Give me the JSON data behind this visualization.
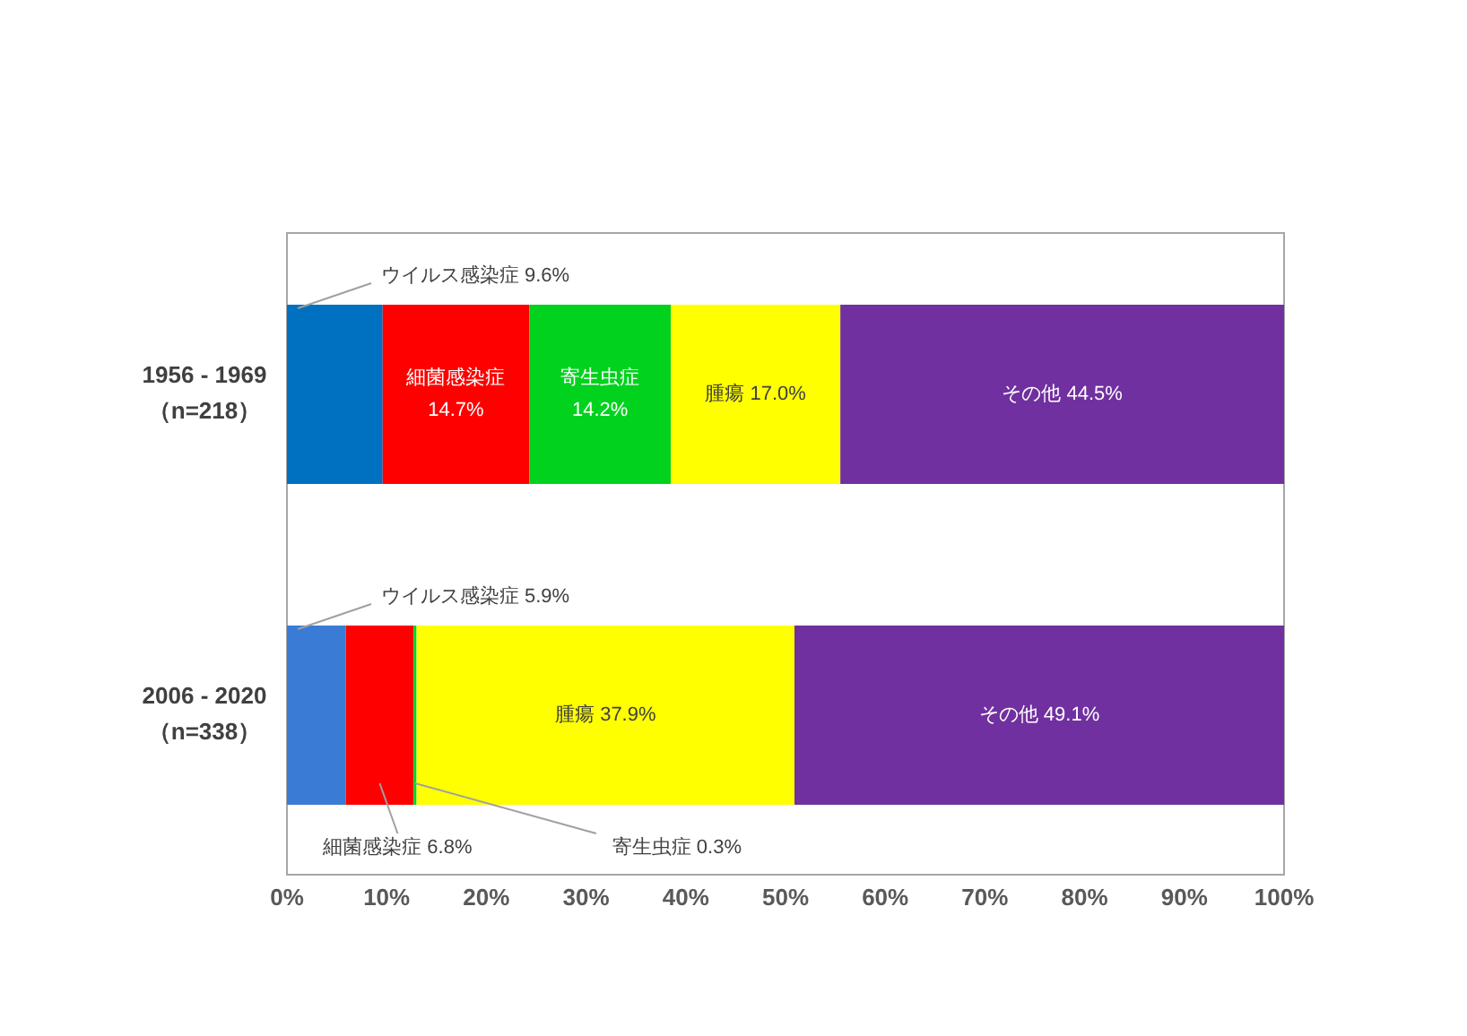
{
  "chart_data": {
    "type": "bar",
    "orientation": "horizontal",
    "stacked": true,
    "categories": [
      "1956 - 1969\n（n=218）",
      "2006 - 2020\n（n=338）"
    ],
    "series": [
      {
        "colors": [
          "#0070c0",
          "#3a7bd5"
        ],
        "values": [
          9.6,
          5.9
        ],
        "value_labels": [
          "ウイルス感染症 9.6%",
          "ウイルス感染症 5.9%"
        ]
      },
      {
        "color": "#ff0000",
        "values": [
          14.7,
          6.8
        ],
        "value_labels": [
          "細菌感染症\n14.7%",
          "細菌感染症 6.8%"
        ]
      },
      {
        "color": "#00d21e",
        "values": [
          14.2,
          0.3
        ],
        "value_labels": [
          "寄生虫症\n14.2%",
          "寄生虫症 0.3%"
        ]
      },
      {
        "color": "#ffff00",
        "values": [
          17.0,
          37.9
        ],
        "value_labels": [
          "腫瘍 17.0%",
          "腫瘍 37.9%"
        ]
      },
      {
        "color": "#7030a0",
        "values": [
          44.5,
          49.1
        ],
        "value_labels": [
          "その他 44.5%",
          "その他 49.1%"
        ]
      }
    ],
    "xlim": [
      0,
      100
    ],
    "xticks": [
      {
        "value": 0,
        "label": "0%"
      },
      {
        "value": 10,
        "label": "10%"
      },
      {
        "value": 20,
        "label": "20%"
      },
      {
        "value": 30,
        "label": "30%"
      },
      {
        "value": 40,
        "label": "40%"
      },
      {
        "value": 50,
        "label": "50%"
      },
      {
        "value": 60,
        "label": "60%"
      },
      {
        "value": 70,
        "label": "70%"
      },
      {
        "value": 80,
        "label": "80%"
      },
      {
        "value": 90,
        "label": "90%"
      },
      {
        "value": 100,
        "label": "100%"
      }
    ],
    "grid": false,
    "legend": false
  }
}
